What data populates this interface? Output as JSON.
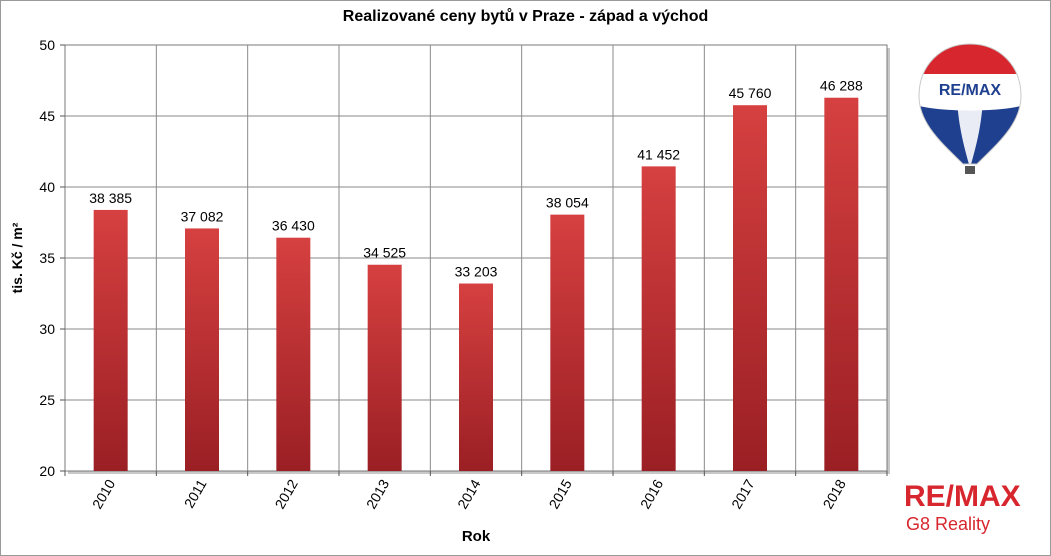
{
  "chart_data": {
    "type": "bar",
    "title": "Realizované ceny bytů v Praze - západ a východ",
    "xlabel": "Rok",
    "ylabel": "tis. Kč / m²",
    "ylim": [
      20,
      50
    ],
    "yticks": [
      20,
      25,
      30,
      35,
      40,
      45,
      50
    ],
    "categories": [
      "2010",
      "2011",
      "2012",
      "2013",
      "2014",
      "2015",
      "2016",
      "2017",
      "2018"
    ],
    "values": [
      38.385,
      37.082,
      36.43,
      34.525,
      33.203,
      38.054,
      41.452,
      45.76,
      46.288
    ],
    "data_labels": [
      "38 385",
      "37 082",
      "36 430",
      "34 525",
      "33 203",
      "38 054",
      "41 452",
      "45 760",
      "46 288"
    ],
    "grid": true,
    "legend": "none",
    "colors": {
      "bar_top": "#d64040",
      "bar_bottom": "#9a1f24"
    }
  },
  "logo": {
    "balloon_text": "RE/MAX",
    "brand_name": "RE/MAX",
    "brand_sub": "G8 Reality",
    "colors": {
      "red": "#d7262e",
      "blue": "#1f3f8f"
    }
  }
}
